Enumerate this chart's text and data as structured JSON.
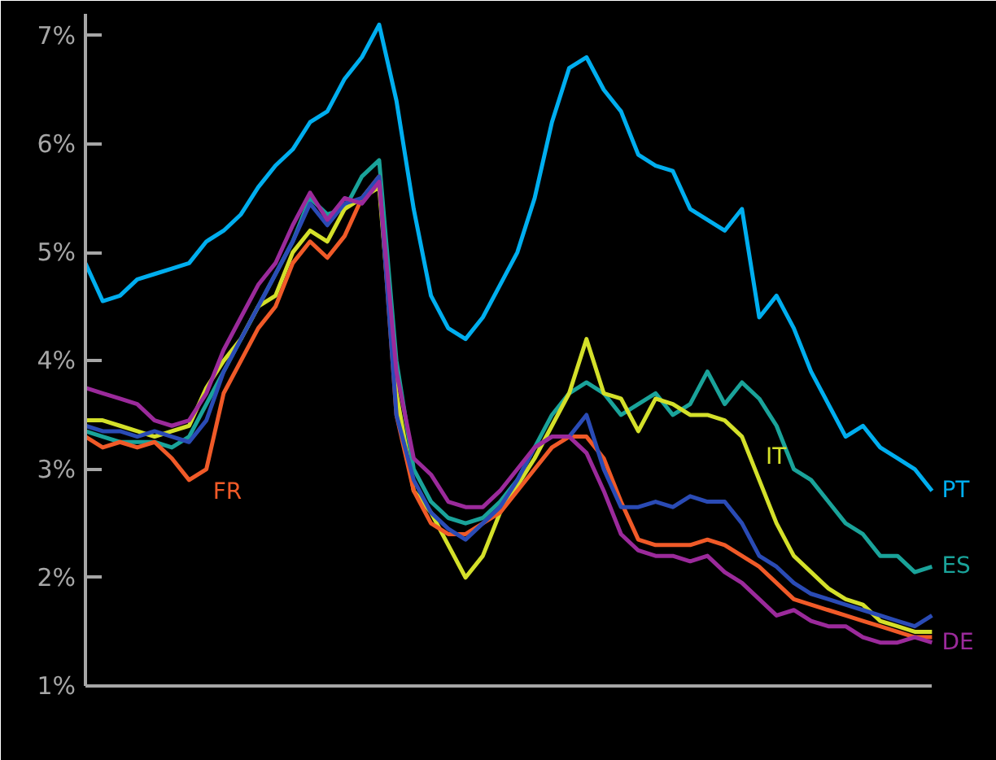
{
  "chart_data": {
    "type": "line",
    "categories": [
      null,
      null,
      null,
      null,
      null,
      null,
      null,
      null,
      null,
      null,
      null,
      null,
      null,
      null,
      null,
      null,
      null,
      null,
      null,
      null,
      null,
      null,
      null,
      null,
      null,
      null,
      null,
      null,
      null,
      null,
      null,
      null,
      null,
      null,
      null,
      null,
      null,
      null,
      null,
      null,
      null,
      null,
      null,
      null,
      null,
      null,
      null,
      null,
      null,
      null
    ],
    "ylim": [
      1,
      7.2
    ],
    "yticks": [
      {
        "value": 1,
        "label": "1%"
      },
      {
        "value": 2,
        "label": "2%"
      },
      {
        "value": 3,
        "label": "3%"
      },
      {
        "value": 4,
        "label": "4%"
      },
      {
        "value": 5,
        "label": "5%"
      },
      {
        "value": 6,
        "label": "6%"
      },
      {
        "value": 7,
        "label": "7%"
      }
    ],
    "grid": false,
    "line_style": "solid",
    "series": [
      {
        "name": "PT",
        "color": "#00aeef",
        "values": [
          4.9,
          4.55,
          4.6,
          4.75,
          4.8,
          4.85,
          4.9,
          5.1,
          5.2,
          5.35,
          5.6,
          5.8,
          5.95,
          6.2,
          6.3,
          6.6,
          6.8,
          7.1,
          6.4,
          5.4,
          4.6,
          4.3,
          4.2,
          4.4,
          4.7,
          5.0,
          5.5,
          6.2,
          6.7,
          6.8,
          6.5,
          6.3,
          5.9,
          5.8,
          5.75,
          5.4,
          5.3,
          5.2,
          5.4,
          4.4,
          4.6,
          4.3,
          3.9,
          3.6,
          3.3,
          3.4,
          3.2,
          3.1,
          3.0,
          2.8
        ]
      },
      {
        "name": "ES",
        "color": "#1aa39a",
        "values": [
          3.35,
          3.3,
          3.25,
          3.25,
          3.25,
          3.2,
          3.3,
          3.6,
          3.9,
          4.2,
          4.5,
          4.8,
          5.1,
          5.5,
          5.35,
          5.4,
          5.7,
          5.85,
          4.0,
          3.0,
          2.7,
          2.55,
          2.5,
          2.55,
          2.7,
          2.9,
          3.2,
          3.5,
          3.7,
          3.8,
          3.7,
          3.5,
          3.6,
          3.7,
          3.5,
          3.6,
          3.9,
          3.6,
          3.8,
          3.65,
          3.4,
          3.0,
          2.9,
          2.7,
          2.5,
          2.4,
          2.2,
          2.2,
          2.05,
          2.1
        ]
      },
      {
        "name": "IT",
        "color": "#d4e02a",
        "values": [
          3.45,
          3.45,
          3.4,
          3.35,
          3.3,
          3.35,
          3.4,
          3.75,
          4.0,
          4.2,
          4.5,
          4.6,
          5.0,
          5.2,
          5.1,
          5.4,
          5.5,
          5.6,
          3.7,
          2.8,
          2.6,
          2.3,
          2.0,
          2.2,
          2.6,
          2.85,
          3.1,
          3.4,
          3.7,
          4.2,
          3.7,
          3.65,
          3.35,
          3.65,
          3.6,
          3.5,
          3.5,
          3.45,
          3.3,
          2.9,
          2.5,
          2.2,
          2.05,
          1.9,
          1.8,
          1.75,
          1.6,
          1.55,
          1.5,
          1.5
        ]
      },
      {
        "name": "FR",
        "color": "#f05a28",
        "values": [
          3.3,
          3.2,
          3.25,
          3.2,
          3.25,
          3.1,
          2.9,
          3.0,
          3.7,
          4.0,
          4.3,
          4.5,
          4.9,
          5.1,
          4.95,
          5.15,
          5.5,
          5.7,
          3.5,
          2.8,
          2.5,
          2.4,
          2.4,
          2.5,
          2.6,
          2.8,
          3.0,
          3.2,
          3.3,
          3.3,
          3.1,
          2.7,
          2.35,
          2.3,
          2.3,
          2.3,
          2.35,
          2.3,
          2.2,
          2.1,
          1.95,
          1.8,
          1.75,
          1.7,
          1.65,
          1.6,
          1.55,
          1.5,
          1.45,
          1.45
        ]
      },
      {
        "color": "#2a4bb5",
        "values": [
          3.4,
          3.35,
          3.35,
          3.3,
          3.35,
          3.3,
          3.25,
          3.45,
          3.9,
          4.2,
          4.5,
          4.8,
          5.1,
          5.45,
          5.25,
          5.45,
          5.5,
          5.7,
          3.5,
          2.9,
          2.6,
          2.45,
          2.35,
          2.5,
          2.65,
          2.9,
          3.2,
          3.3,
          3.3,
          3.5,
          3.0,
          2.65,
          2.65,
          2.7,
          2.65,
          2.75,
          2.7,
          2.7,
          2.5,
          2.2,
          2.1,
          1.95,
          1.85,
          1.8,
          1.75,
          1.7,
          1.65,
          1.6,
          1.55,
          1.65
        ]
      },
      {
        "name": "DE",
        "color": "#9b2a9b",
        "values": [
          3.75,
          3.7,
          3.65,
          3.6,
          3.45,
          3.4,
          3.45,
          3.7,
          4.1,
          4.4,
          4.7,
          4.9,
          5.25,
          5.55,
          5.3,
          5.5,
          5.45,
          5.65,
          3.9,
          3.1,
          2.95,
          2.7,
          2.65,
          2.65,
          2.8,
          3.0,
          3.2,
          3.3,
          3.3,
          3.15,
          2.8,
          2.4,
          2.25,
          2.2,
          2.2,
          2.15,
          2.2,
          2.05,
          1.95,
          1.8,
          1.65,
          1.7,
          1.6,
          1.55,
          1.55,
          1.45,
          1.4,
          1.4,
          1.45,
          1.4
        ]
      }
    ]
  }
}
